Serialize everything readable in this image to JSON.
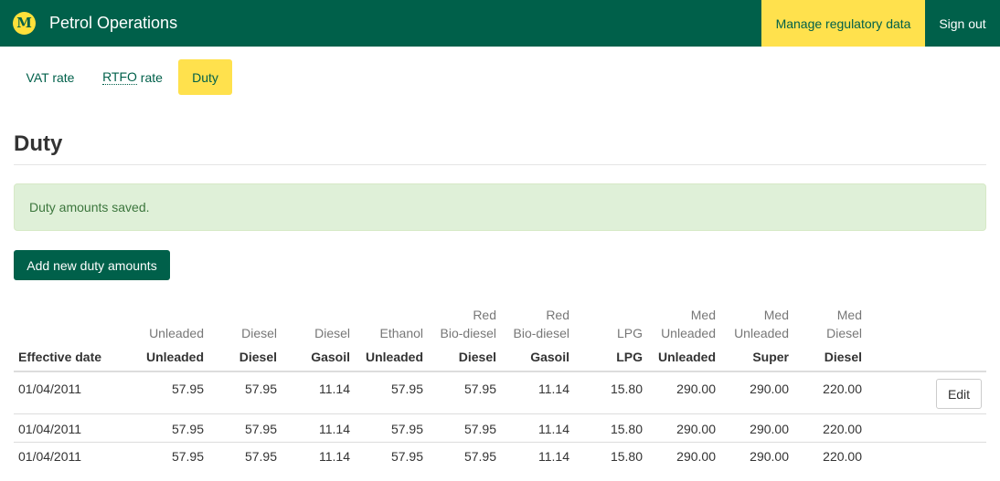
{
  "header": {
    "logo_letter": "M",
    "app_title": "Petrol Operations",
    "manage_label": "Manage regulatory data",
    "signout_label": "Sign out"
  },
  "subnav": {
    "vat_label": "VAT rate",
    "rtfo_abbr": "RTFO",
    "rtfo_suffix": " rate",
    "duty_label": "Duty"
  },
  "page": {
    "title": "Duty",
    "alert": "Duty amounts saved.",
    "add_button": "Add new duty amounts"
  },
  "table": {
    "effective_header": "Effective date",
    "groups": [
      [
        "Unleaded"
      ],
      [
        "Diesel"
      ],
      [
        "Diesel"
      ],
      [
        "Ethanol"
      ],
      [
        "Red",
        "Bio-diesel"
      ],
      [
        "Red",
        "Bio-diesel"
      ],
      [
        "LPG"
      ],
      [
        "Med",
        "Unleaded"
      ],
      [
        "Med",
        "Unleaded"
      ],
      [
        "Med",
        "Diesel"
      ]
    ],
    "fuels": [
      "Unleaded",
      "Diesel",
      "Gasoil",
      "Unleaded",
      "Diesel",
      "Gasoil",
      "LPG",
      "Unleaded",
      "Super",
      "Diesel"
    ],
    "edit_label": "Edit",
    "rows": [
      {
        "date": "01/04/2011",
        "values": [
          "57.95",
          "57.95",
          "11.14",
          "57.95",
          "57.95",
          "11.14",
          "15.80",
          "290.00",
          "290.00",
          "220.00"
        ],
        "editable": true
      },
      {
        "date": "01/04/2011",
        "values": [
          "57.95",
          "57.95",
          "11.14",
          "57.95",
          "57.95",
          "11.14",
          "15.80",
          "290.00",
          "290.00",
          "220.00"
        ],
        "editable": false
      },
      {
        "date": "01/04/2011",
        "values": [
          "57.95",
          "57.95",
          "11.14",
          "57.95",
          "57.95",
          "11.14",
          "15.80",
          "290.00",
          "290.00",
          "220.00"
        ],
        "editable": false
      }
    ]
  },
  "colors": {
    "brand_green": "#00604a",
    "accent_yellow": "#ffe14d",
    "success_bg": "#dff0d8",
    "success_text": "#3c763d"
  }
}
